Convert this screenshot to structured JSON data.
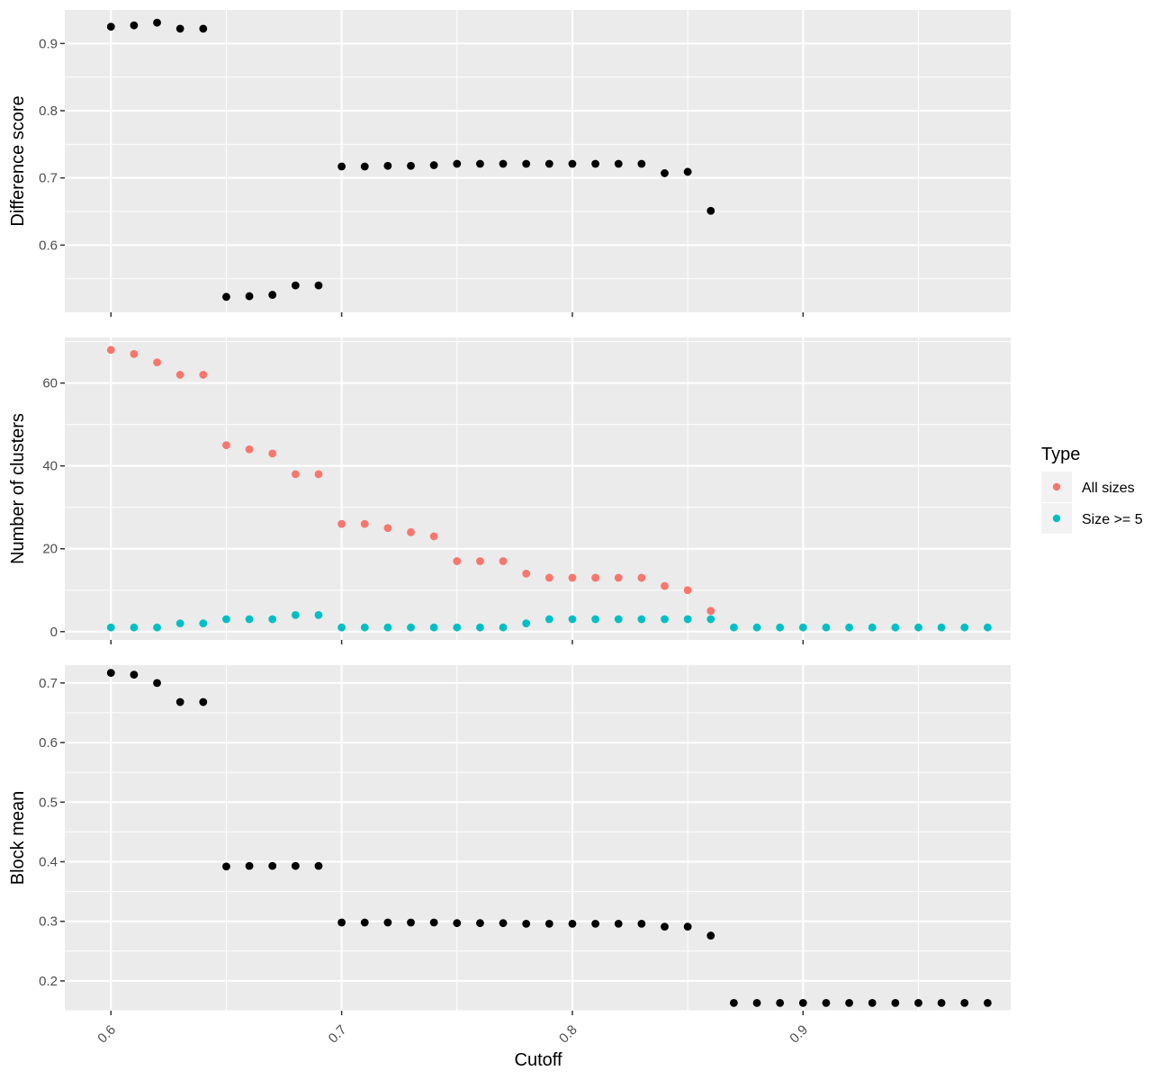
{
  "chart_data": [
    {
      "type": "scatter",
      "ylabel": "Difference score",
      "xlabel": "",
      "xlim": [
        0.58,
        0.99
      ],
      "ylim": [
        0.5,
        0.95
      ],
      "yticks": [
        0.6,
        0.7,
        0.8,
        0.9
      ],
      "ytick_labels": [
        "0.6",
        "0.7",
        "0.8",
        "0.9"
      ],
      "series": [
        {
          "color": "#000000",
          "x": [
            0.6,
            0.61,
            0.62,
            0.63,
            0.64,
            0.65,
            0.66,
            0.67,
            0.68,
            0.69,
            0.7,
            0.71,
            0.72,
            0.73,
            0.74,
            0.75,
            0.76,
            0.77,
            0.78,
            0.79,
            0.8,
            0.81,
            0.82,
            0.83,
            0.84,
            0.85,
            0.86
          ],
          "y": [
            0.925,
            0.927,
            0.931,
            0.922,
            0.922,
            0.523,
            0.524,
            0.526,
            0.54,
            0.54,
            0.717,
            0.717,
            0.718,
            0.718,
            0.719,
            0.721,
            0.721,
            0.721,
            0.721,
            0.721,
            0.721,
            0.721,
            0.721,
            0.721,
            0.707,
            0.709,
            0.651
          ]
        }
      ]
    },
    {
      "type": "scatter",
      "ylabel": "Number of clusters",
      "xlabel": "",
      "xlim": [
        0.58,
        0.99
      ],
      "ylim": [
        -2,
        71
      ],
      "yticks": [
        0,
        20,
        40,
        60
      ],
      "ytick_labels": [
        "0",
        "20",
        "40",
        "60"
      ],
      "series": [
        {
          "name": "All sizes",
          "color": "#F8766D",
          "x": [
            0.6,
            0.61,
            0.62,
            0.63,
            0.64,
            0.65,
            0.66,
            0.67,
            0.68,
            0.69,
            0.7,
            0.71,
            0.72,
            0.73,
            0.74,
            0.75,
            0.76,
            0.77,
            0.78,
            0.79,
            0.8,
            0.81,
            0.82,
            0.83,
            0.84,
            0.85,
            0.86
          ],
          "y": [
            68,
            67,
            65,
            62,
            62,
            45,
            44,
            43,
            38,
            38,
            26,
            26,
            25,
            24,
            23,
            17,
            17,
            17,
            14,
            13,
            13,
            13,
            13,
            13,
            11,
            10,
            5
          ]
        },
        {
          "name": "Size >= 5",
          "color": "#00BFC4",
          "x": [
            0.6,
            0.61,
            0.62,
            0.63,
            0.64,
            0.65,
            0.66,
            0.67,
            0.68,
            0.69,
            0.7,
            0.71,
            0.72,
            0.73,
            0.74,
            0.75,
            0.76,
            0.77,
            0.78,
            0.79,
            0.8,
            0.81,
            0.82,
            0.83,
            0.84,
            0.85,
            0.86,
            0.87,
            0.88,
            0.89,
            0.9,
            0.91,
            0.92,
            0.93,
            0.94,
            0.95,
            0.96,
            0.97,
            0.98
          ],
          "y": [
            1,
            1,
            1,
            2,
            2,
            3,
            3,
            3,
            4,
            4,
            1,
            1,
            1,
            1,
            1,
            1,
            1,
            1,
            2,
            3,
            3,
            3,
            3,
            3,
            3,
            3,
            3,
            1,
            1,
            1,
            1,
            1,
            1,
            1,
            1,
            1,
            1,
            1,
            1
          ]
        }
      ]
    },
    {
      "type": "scatter",
      "ylabel": "Block mean",
      "xlabel": "Cutoff",
      "xlim": [
        0.58,
        0.99
      ],
      "ylim": [
        0.15,
        0.73
      ],
      "yticks": [
        0.2,
        0.3,
        0.4,
        0.5,
        0.6,
        0.7
      ],
      "ytick_labels": [
        "0.2",
        "0.3",
        "0.4",
        "0.5",
        "0.6",
        "0.7"
      ],
      "series": [
        {
          "color": "#000000",
          "x": [
            0.6,
            0.61,
            0.62,
            0.63,
            0.64,
            0.65,
            0.66,
            0.67,
            0.68,
            0.69,
            0.7,
            0.71,
            0.72,
            0.73,
            0.74,
            0.75,
            0.76,
            0.77,
            0.78,
            0.79,
            0.8,
            0.81,
            0.82,
            0.83,
            0.84,
            0.85,
            0.86,
            0.87,
            0.88,
            0.89,
            0.9,
            0.91,
            0.92,
            0.93,
            0.94,
            0.95,
            0.96,
            0.97,
            0.98
          ],
          "y": [
            0.717,
            0.714,
            0.7,
            0.668,
            0.668,
            0.392,
            0.393,
            0.393,
            0.393,
            0.393,
            0.298,
            0.298,
            0.298,
            0.298,
            0.298,
            0.297,
            0.297,
            0.297,
            0.296,
            0.296,
            0.296,
            0.296,
            0.296,
            0.296,
            0.291,
            0.291,
            0.276,
            0.163,
            0.163,
            0.163,
            0.163,
            0.163,
            0.163,
            0.163,
            0.163,
            0.163,
            0.163,
            0.163,
            0.163
          ]
        }
      ]
    }
  ],
  "x_axis": {
    "ticks": [
      0.6,
      0.7,
      0.8,
      0.9
    ],
    "tick_labels": [
      "0.6",
      "0.7",
      "0.8",
      "0.9"
    ],
    "title": "Cutoff"
  },
  "legend": {
    "title": "Type",
    "placement": "right",
    "items": [
      {
        "label": "All sizes",
        "color": "#F8766D"
      },
      {
        "label": "Size >= 5",
        "color": "#00BFC4"
      }
    ]
  },
  "colors": {
    "panel_background": "#ebebeb",
    "grid": "#ffffff",
    "point_default": "#000000"
  }
}
